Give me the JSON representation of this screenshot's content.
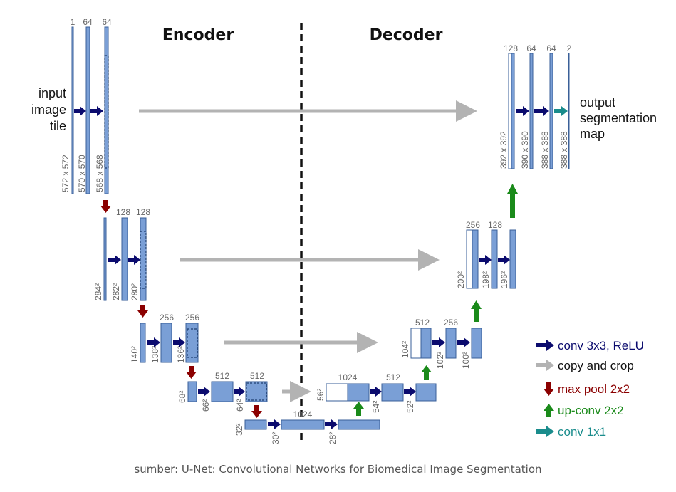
{
  "titles": {
    "encoder": "Encoder",
    "decoder": "Decoder"
  },
  "input_label": [
    "input",
    "image",
    "tile"
  ],
  "output_label": [
    "output",
    "segmentation",
    "map"
  ],
  "caption": "sumber: U-Net: Convolutional Networks for Biomedical Image Segmentation",
  "colors": {
    "conv": "#0b0b6e",
    "copy": "#b3b3b3",
    "pool": "#8b0000",
    "upconv": "#1a8a1a",
    "conv1x1": "#1a8c8c",
    "feature_map": "#7a9fd6"
  },
  "legend": [
    {
      "key": "conv",
      "icon": "arrow-right-icon",
      "label": "conv 3x3, ReLU"
    },
    {
      "key": "copy",
      "icon": "arrow-right-icon",
      "label": "copy and crop"
    },
    {
      "key": "pool",
      "icon": "arrow-down-icon",
      "label": "max pool 2x2"
    },
    {
      "key": "upconv",
      "icon": "arrow-up-icon",
      "label": "up-conv 2x2"
    },
    {
      "key": "conv1x1",
      "icon": "arrow-right-icon",
      "label": "conv 1x1"
    }
  ],
  "feature_maps": {
    "enc1": [
      {
        "channels": "1",
        "size": "572 x 572"
      },
      {
        "channels": "64",
        "size": "570 x 570"
      },
      {
        "channels": "64",
        "size": "568 x 568"
      }
    ],
    "enc2": [
      {
        "channels": "",
        "size": "284²"
      },
      {
        "channels": "128",
        "size": "282²"
      },
      {
        "channels": "128",
        "size": "280²"
      }
    ],
    "enc3": [
      {
        "channels": "",
        "size": "140²"
      },
      {
        "channels": "256",
        "size": "138²"
      },
      {
        "channels": "256",
        "size": "136²"
      }
    ],
    "enc4": [
      {
        "channels": "",
        "size": "68²"
      },
      {
        "channels": "512",
        "size": "66²"
      },
      {
        "channels": "512",
        "size": "64²"
      }
    ],
    "bottom": [
      {
        "channels": "",
        "size": "32²"
      },
      {
        "channels": "1024",
        "size": "30²"
      },
      {
        "channels": "",
        "size": "28²"
      }
    ],
    "dec4": [
      {
        "channels": "1024",
        "size": "56²"
      },
      {
        "channels": "512",
        "size": "54²"
      },
      {
        "channels": "",
        "size": "52²"
      }
    ],
    "dec3": [
      {
        "channels": "512",
        "size": "104²"
      },
      {
        "channels": "256",
        "size": "102²"
      },
      {
        "channels": "",
        "size": "100²"
      }
    ],
    "dec2": [
      {
        "channels": "256",
        "size": "200²"
      },
      {
        "channels": "128",
        "size": "198²"
      },
      {
        "channels": "",
        "size": "196²"
      }
    ],
    "dec1": [
      {
        "channels": "128",
        "size": "392 x 392"
      },
      {
        "channels": "64",
        "size": "390 x 390"
      },
      {
        "channels": "64",
        "size": "388 x 388"
      },
      {
        "channels": "2",
        "size": "388 x 388"
      }
    ]
  }
}
